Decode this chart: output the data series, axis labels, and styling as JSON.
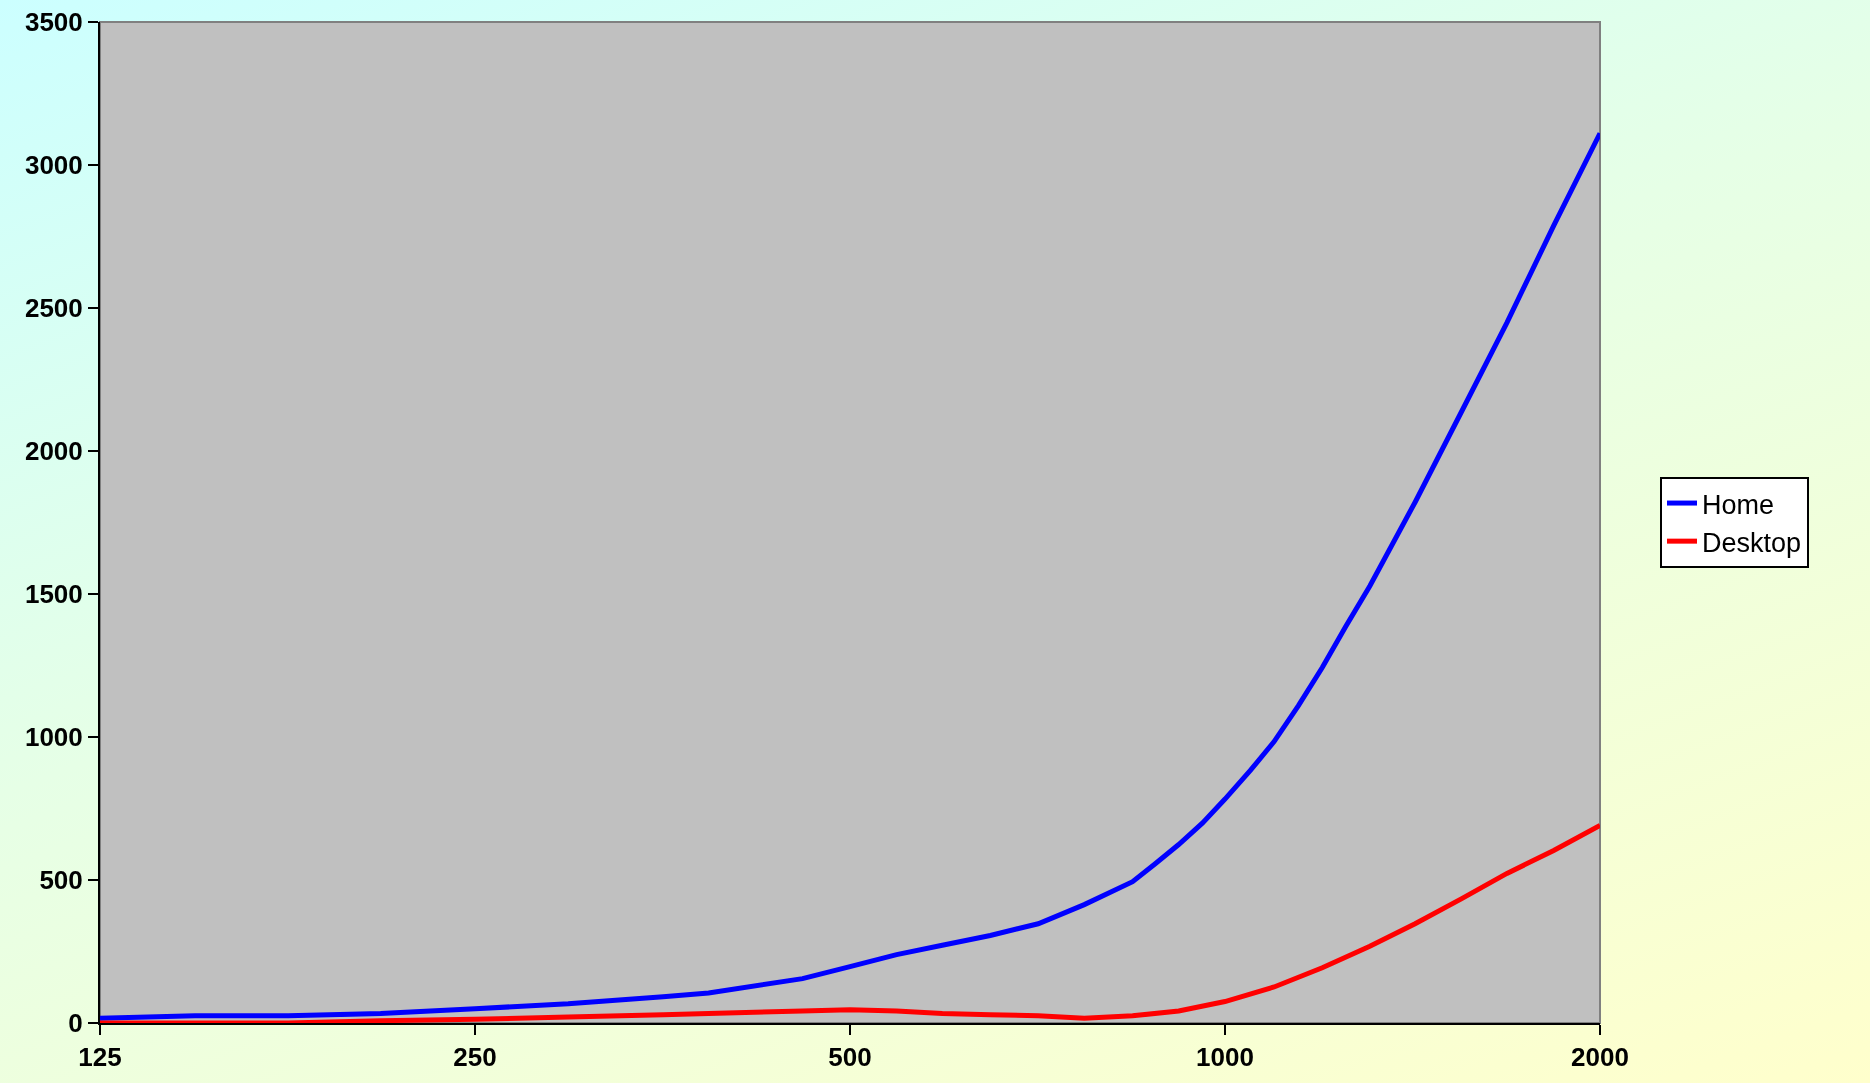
{
  "chart_data": {
    "type": "line",
    "log": "x",
    "grid": false,
    "legend": "right",
    "marker": "none",
    "line_style": "solid",
    "xlim": [
      125,
      2000
    ],
    "xticks": [
      125,
      250,
      500,
      1000,
      2000
    ],
    "ylim": [
      0,
      3500
    ],
    "yticks": [
      0,
      500,
      1000,
      1500,
      2000,
      2500,
      3000,
      3500
    ],
    "series": [
      {
        "name": "Home",
        "color": "#0000ff",
        "x": [
          125,
          149,
          177,
          210,
          250,
          297,
          354,
          385,
          458,
          500,
          545,
          593,
          648,
          708,
          771,
          843,
          879,
          918,
          959,
          1000,
          1048,
          1095,
          1145,
          1197,
          1250,
          1307,
          1421,
          1549,
          1684,
          1836,
          2000
        ],
        "values": [
          17,
          25,
          25,
          33,
          50,
          67,
          92,
          105,
          155,
          197,
          239,
          272,
          306,
          347,
          414,
          494,
          557,
          624,
          699,
          783,
          883,
          984,
          1109,
          1243,
          1386,
          1528,
          1821,
          2139,
          2449,
          2788,
          3111
        ]
      },
      {
        "name": "Desktop",
        "color": "#ff0000",
        "x": [
          125,
          149,
          177,
          210,
          250,
          297,
          354,
          385,
          458,
          500,
          545,
          593,
          648,
          708,
          771,
          843,
          918,
          1000,
          1095,
          1197,
          1307,
          1421,
          1549,
          1684,
          1836,
          2000
        ],
        "values": [
          0,
          0,
          0,
          8,
          13,
          21,
          29,
          33,
          42,
          46,
          42,
          33,
          29,
          25,
          17,
          25,
          42,
          75,
          126,
          193,
          268,
          347,
          435,
          523,
          603,
          691
        ]
      }
    ]
  }
}
